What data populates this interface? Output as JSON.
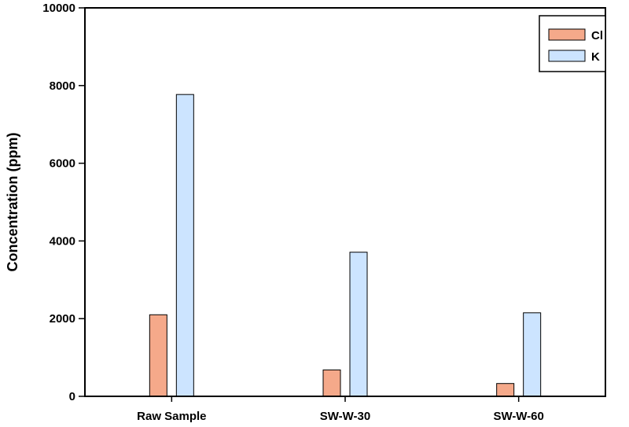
{
  "chart_data": {
    "type": "bar",
    "title": "",
    "xlabel": "",
    "ylabel": "Concentration (ppm)",
    "ylim": [
      0,
      10000
    ],
    "yticks": [
      0,
      2000,
      4000,
      6000,
      8000,
      10000
    ],
    "categories": [
      "Raw Sample",
      "SW-W-30",
      "SW-W-60"
    ],
    "series": [
      {
        "name": "Cl",
        "values": [
          2100,
          680,
          330
        ],
        "color": "#f5a98a"
      },
      {
        "name": "K",
        "values": [
          7770,
          3710,
          2150
        ],
        "color": "#cce4ff"
      }
    ],
    "legend_position": "top-right",
    "grid": false
  }
}
